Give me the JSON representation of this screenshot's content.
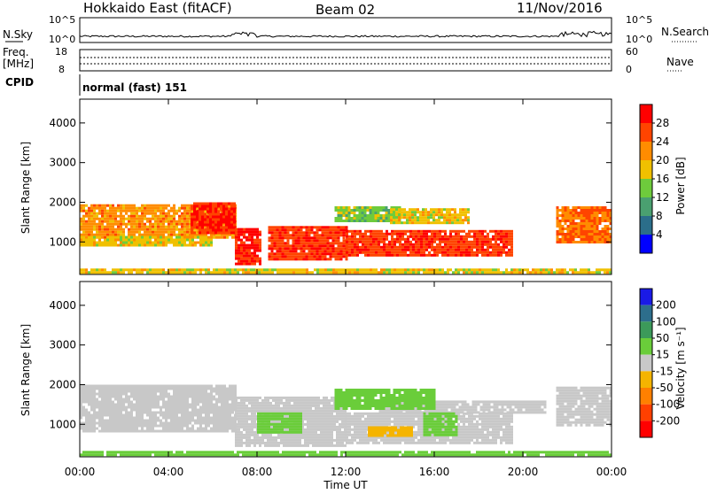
{
  "header": {
    "station": "Hokkaido East (fitACF)",
    "beam": "Beam 02",
    "date": "11/Nov/2016"
  },
  "nsky_panel": {
    "left_label": "N.Sky",
    "right_label": "N.Search",
    "tick_top": "10^5",
    "tick_bottom": "10^0"
  },
  "freq_panel": {
    "left_label_1": "Freq.",
    "left_label_2": "[MHz]",
    "left_tick_top": "18",
    "left_tick_bottom": "8",
    "right_label": "Nave",
    "right_tick_top": "60",
    "right_tick_bottom": "0"
  },
  "cpid_panel": {
    "left_label": "CPID",
    "mode_text": "normal (fast) 151"
  },
  "chart_data": [
    {
      "type": "heatmap",
      "quantity": "Power",
      "ylabel": "Slant Range [km]",
      "xlabel": "Time UT",
      "colorbar_label": "Power [dB]",
      "xlim": [
        0,
        24
      ],
      "ylim": [
        180,
        4600
      ],
      "x_ticks": [
        "00:00",
        "04:00",
        "08:00",
        "12:00",
        "16:00",
        "20:00",
        "00:00"
      ],
      "y_ticks": [
        "1000",
        "2000",
        "3000",
        "4000"
      ],
      "colorbar_ticks": [
        "28",
        "24",
        "20",
        "16",
        "12",
        "8",
        "4"
      ],
      "colorbar_colors": [
        "#ff0000",
        "#ff4400",
        "#ff8c00",
        "#f0c000",
        "#6ecb3c",
        "#4aa070",
        "#2b6e8a",
        "#0000ff"
      ],
      "echo_regions": [
        {
          "t0": 0.0,
          "t1": 7.0,
          "r0": 1100,
          "r1": 1950,
          "level": 22
        },
        {
          "t0": 0.0,
          "t1": 6.0,
          "r0": 900,
          "r1": 1150,
          "level": 18
        },
        {
          "t0": 5.0,
          "t1": 7.0,
          "r0": 1200,
          "r1": 2000,
          "level": 28
        },
        {
          "t0": 7.0,
          "t1": 8.2,
          "r0": 450,
          "r1": 1350,
          "level": 28
        },
        {
          "t0": 8.5,
          "t1": 12.0,
          "r0": 550,
          "r1": 1400,
          "level": 27
        },
        {
          "t0": 12.0,
          "t1": 19.5,
          "r0": 650,
          "r1": 1300,
          "level": 27
        },
        {
          "t0": 11.5,
          "t1": 14.5,
          "r0": 1500,
          "r1": 1900,
          "level": 14
        },
        {
          "t0": 14.0,
          "t1": 17.5,
          "r0": 1450,
          "r1": 1850,
          "level": 18
        },
        {
          "t0": 21.5,
          "t1": 24.0,
          "r0": 1000,
          "r1": 1900,
          "level": 24
        },
        {
          "t0": 0.0,
          "t1": 24.0,
          "r0": 200,
          "r1": 330,
          "level": 18
        }
      ]
    },
    {
      "type": "heatmap",
      "quantity": "Velocity",
      "ylabel": "Slant Range [km]",
      "xlabel": "Time UT",
      "colorbar_label": "Velocity [m s⁻¹]",
      "xlim": [
        0,
        24
      ],
      "ylim": [
        180,
        4600
      ],
      "x_ticks": [
        "00:00",
        "04:00",
        "08:00",
        "12:00",
        "16:00",
        "20:00",
        "00:00"
      ],
      "y_ticks": [
        "1000",
        "2000",
        "3000",
        "4000"
      ],
      "colorbar_ticks": [
        "200",
        "100",
        "50",
        "15",
        "-15",
        "-50",
        "-100",
        "-200"
      ],
      "colorbar_colors": [
        "#1a1ae6",
        "#2d6e8c",
        "#3c9a5a",
        "#6acd3a",
        "#c8c8c8",
        "#f5b400",
        "#ff8000",
        "#ff4000",
        "#ff0000"
      ],
      "echo_regions": [
        {
          "t0": 0.0,
          "t1": 7.0,
          "r0": 800,
          "r1": 2000,
          "level": 0
        },
        {
          "t0": 7.0,
          "t1": 12.0,
          "r0": 450,
          "r1": 1700,
          "level": 0
        },
        {
          "t0": 12.0,
          "t1": 19.5,
          "r0": 550,
          "r1": 1300,
          "level": 0
        },
        {
          "t0": 13.5,
          "t1": 21.0,
          "r0": 1300,
          "r1": 1600,
          "level": 0
        },
        {
          "t0": 21.5,
          "t1": 24.0,
          "r0": 1000,
          "r1": 1950,
          "level": 0
        },
        {
          "t0": 11.5,
          "t1": 16.0,
          "r0": 1400,
          "r1": 1900,
          "level": 30
        },
        {
          "t0": 15.5,
          "t1": 17.0,
          "r0": 750,
          "r1": 1300,
          "level": 30
        },
        {
          "t0": 8.0,
          "t1": 10.0,
          "r0": 800,
          "r1": 1300,
          "level": 30
        },
        {
          "t0": 13.0,
          "t1": 15.0,
          "r0": 700,
          "r1": 950,
          "level": -40
        },
        {
          "t0": 0.0,
          "t1": 24.0,
          "r0": 200,
          "r1": 330,
          "level": 30
        }
      ]
    }
  ]
}
